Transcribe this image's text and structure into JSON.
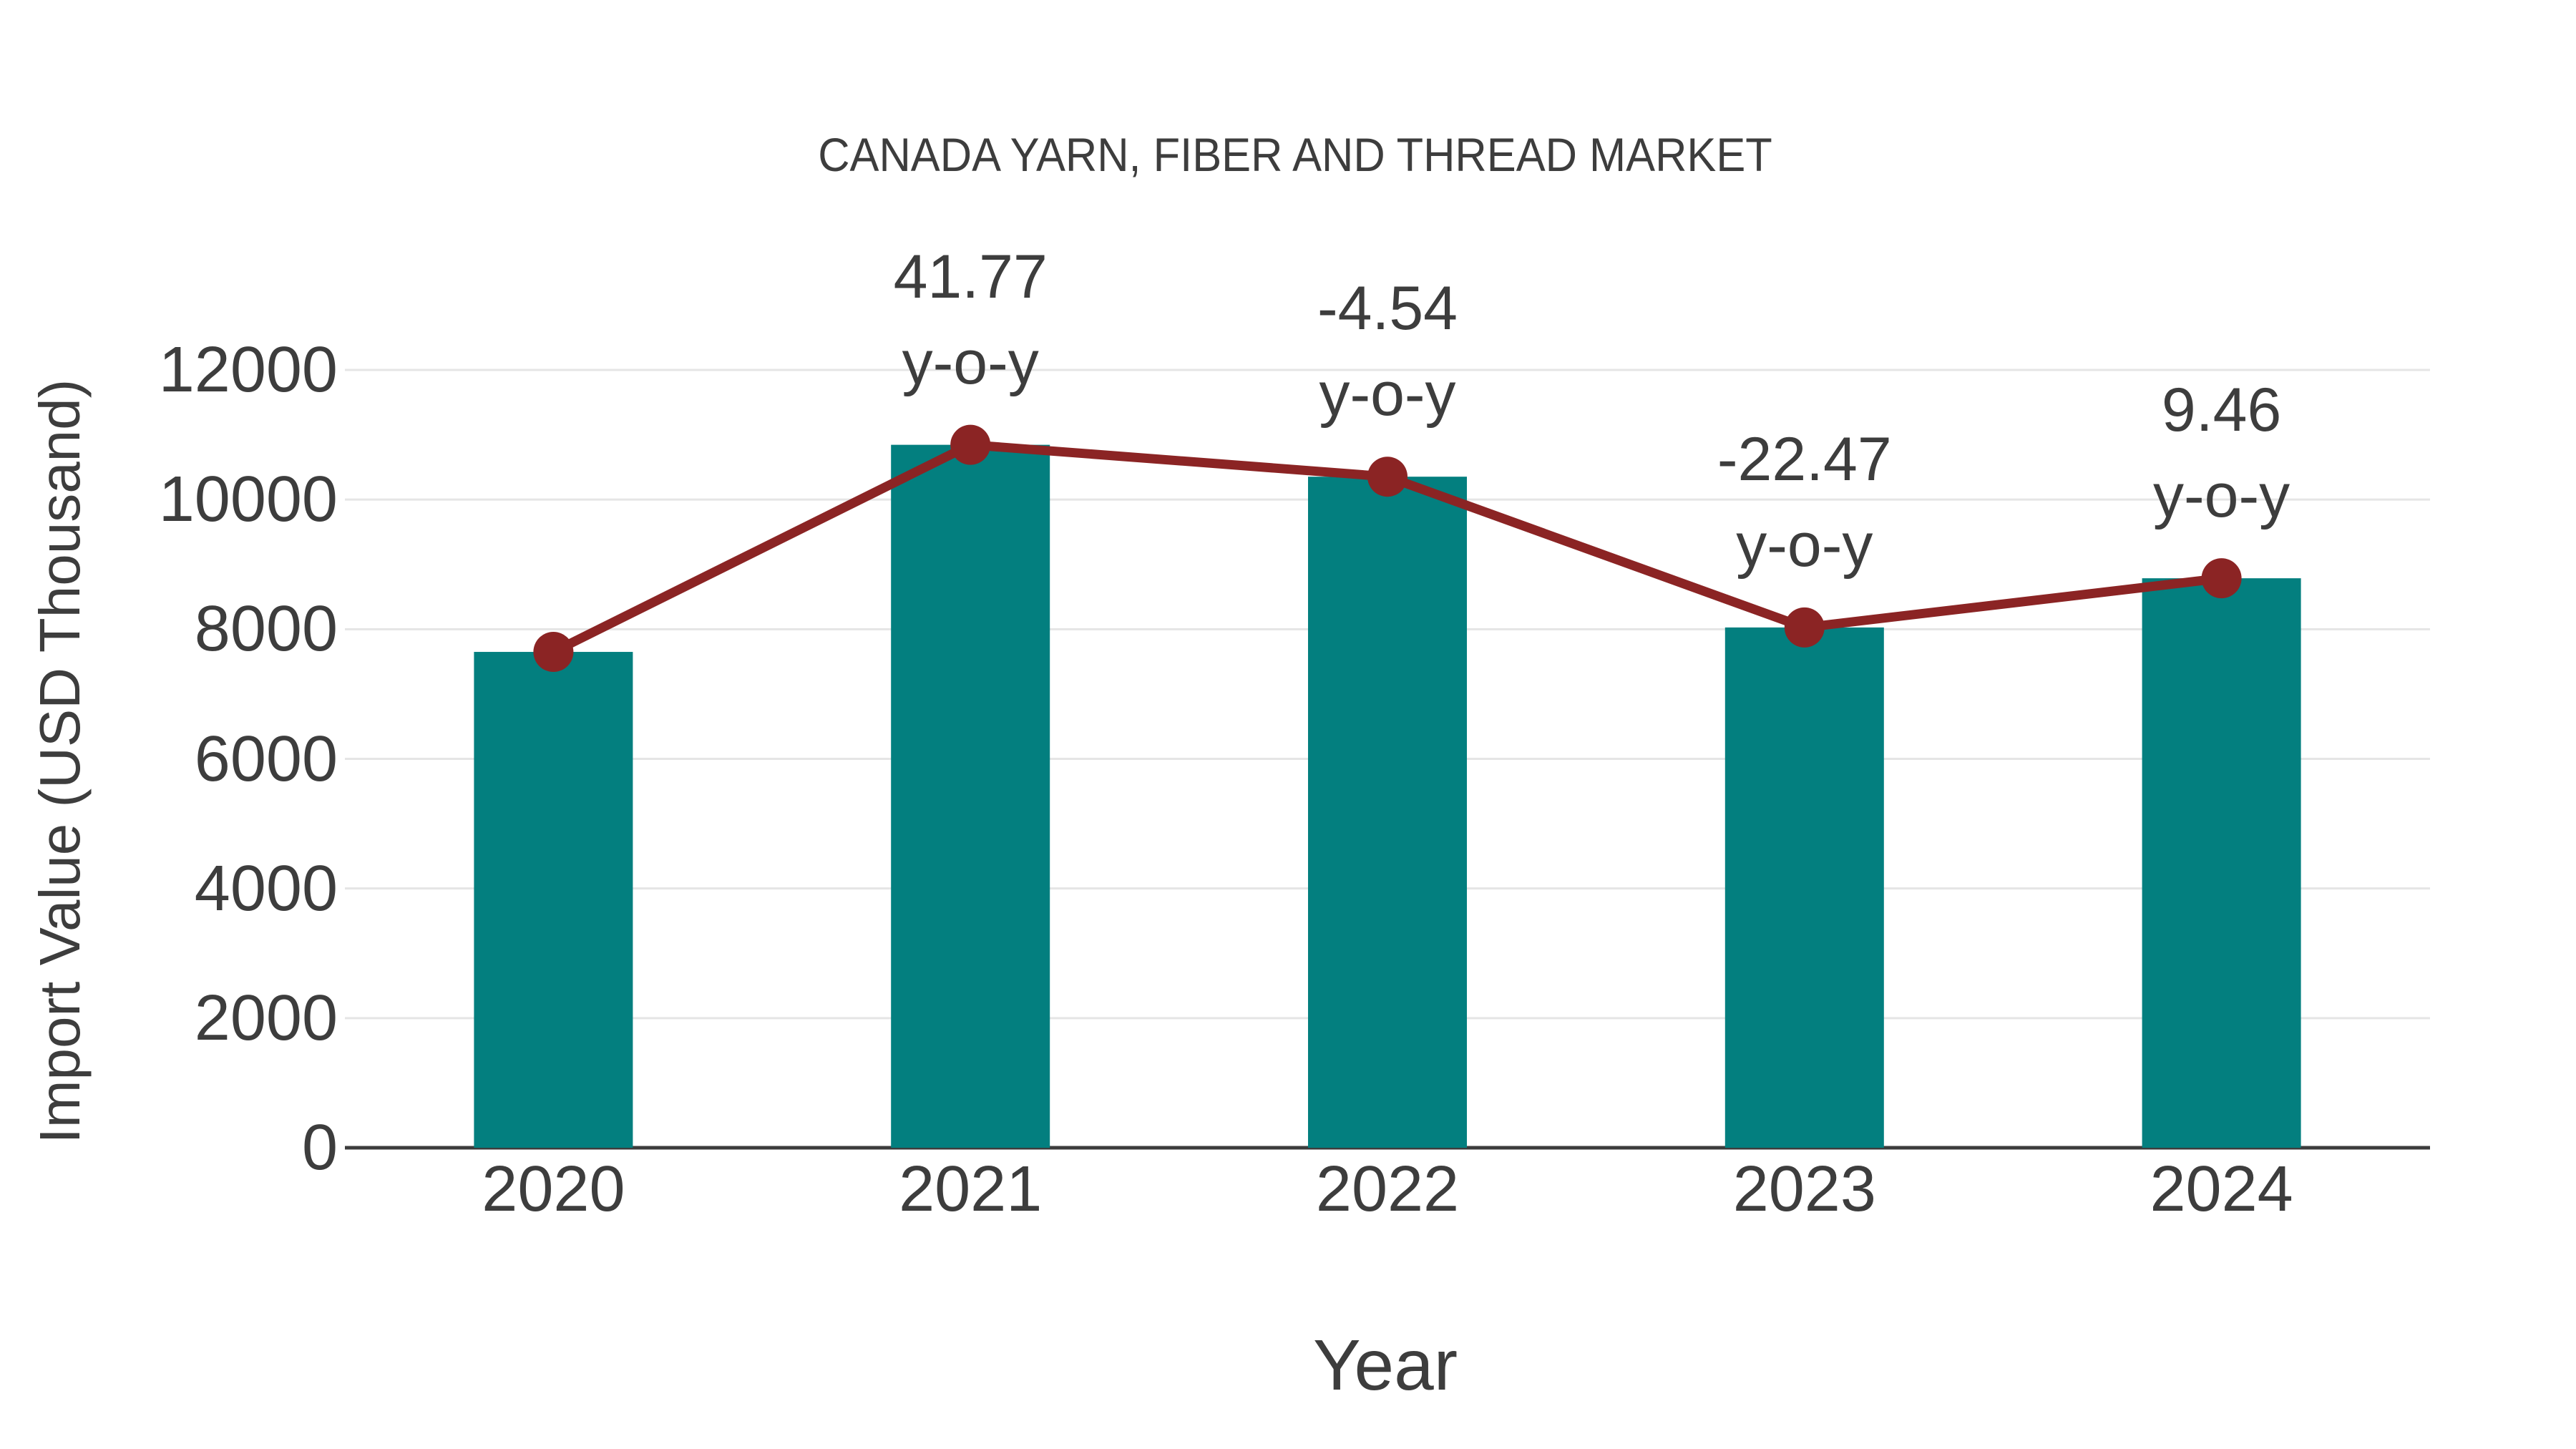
{
  "chart_data": {
    "type": "combo-bar-line",
    "title": "CANADA YARN, FIBER AND THREAD MARKET",
    "xlabel": "Year",
    "ylabel": "Import Value (USD Thousand)",
    "categories": [
      "2020",
      "2021",
      "2022",
      "2023",
      "2024"
    ],
    "series": [
      {
        "name": "Import Value (USD Thousand)",
        "type": "bar",
        "values": [
          7650,
          10845,
          10353,
          8027,
          8786
        ]
      },
      {
        "name": "Year-over-year trend",
        "type": "line",
        "values": [
          7650,
          10845,
          10353,
          8027,
          8786
        ]
      }
    ],
    "annotations": [
      {
        "category": "2021",
        "line1": "41.77",
        "line2": "y-o-y",
        "yoy_percent": 41.77
      },
      {
        "category": "2022",
        "line1": "-4.54",
        "line2": "y-o-y",
        "yoy_percent": -4.54
      },
      {
        "category": "2023",
        "line1": "-22.47",
        "line2": "y-o-y",
        "yoy_percent": -22.47
      },
      {
        "category": "2024",
        "line1": "9.46",
        "line2": "y-o-y",
        "yoy_percent": 9.46
      }
    ],
    "yticks": [
      0,
      2000,
      4000,
      6000,
      8000,
      10000,
      12000
    ],
    "ylim": [
      0,
      12000
    ],
    "grid": "horizontal",
    "legend_position": "none",
    "colors": {
      "bar": "#037F7F",
      "line": "#8B2424",
      "marker": "#8B2424",
      "text": "#3D3D3D",
      "grid": "#E5E5E5",
      "axis": "#3C3C3C",
      "background": "#FFFFFF"
    }
  }
}
